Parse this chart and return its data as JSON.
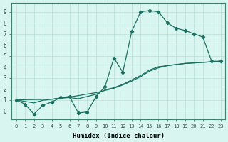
{
  "xlabel": "Humidex (Indice chaleur)",
  "bg_color": "#d8f5f0",
  "grid_color": "#b8ddd8",
  "line_color": "#1a7060",
  "xlim": [
    -0.5,
    23.5
  ],
  "ylim": [
    -0.75,
    9.8
  ],
  "xticks": [
    0,
    1,
    2,
    3,
    4,
    5,
    6,
    7,
    8,
    9,
    10,
    11,
    12,
    13,
    14,
    15,
    16,
    17,
    18,
    19,
    20,
    21,
    22,
    23
  ],
  "yticks": [
    0,
    1,
    2,
    3,
    4,
    5,
    6,
    7,
    8,
    9
  ],
  "curve1_x": [
    0,
    1,
    2,
    3,
    4,
    5,
    6,
    7,
    8,
    9,
    10,
    11,
    12,
    13,
    14,
    15,
    16,
    17,
    18,
    19,
    20,
    21,
    22,
    23
  ],
  "curve1_y": [
    1.0,
    0.6,
    -0.3,
    0.5,
    0.8,
    1.2,
    1.3,
    -0.2,
    -0.1,
    1.3,
    2.2,
    4.8,
    3.5,
    7.2,
    9.0,
    9.1,
    9.0,
    8.0,
    7.5,
    7.3,
    7.0,
    6.7,
    4.5,
    4.5
  ],
  "curve2_x": [
    0,
    1,
    2,
    3,
    4,
    5,
    6,
    7,
    8,
    9,
    10,
    11,
    12,
    13,
    14,
    15,
    16,
    17,
    18,
    19,
    20,
    21,
    22,
    23
  ],
  "curve2_y": [
    1.0,
    0.85,
    0.72,
    0.95,
    1.05,
    1.15,
    1.25,
    1.38,
    1.52,
    1.65,
    1.85,
    2.05,
    2.35,
    2.7,
    3.1,
    3.6,
    3.9,
    4.1,
    4.2,
    4.3,
    4.35,
    4.4,
    4.45,
    4.5
  ],
  "curve3_x": [
    0,
    4,
    5,
    6,
    7,
    8,
    9,
    10,
    11,
    12,
    13,
    14,
    15,
    16,
    17,
    18,
    19,
    20,
    21,
    22,
    23
  ],
  "curve3_y": [
    1.0,
    1.05,
    1.15,
    1.2,
    1.1,
    1.3,
    1.5,
    1.9,
    2.1,
    2.4,
    2.8,
    3.2,
    3.7,
    4.0,
    4.1,
    4.2,
    4.3,
    4.35,
    4.4,
    4.45,
    4.5
  ]
}
